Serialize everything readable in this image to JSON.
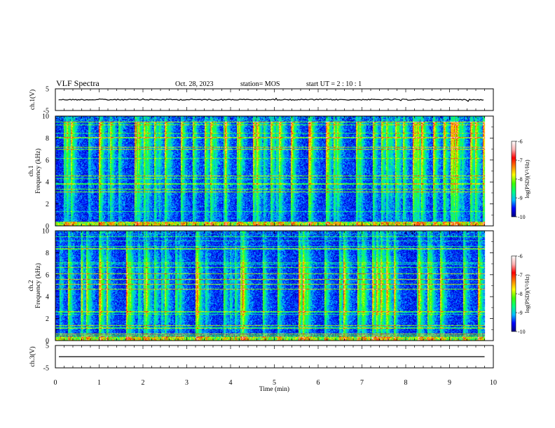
{
  "header": {
    "title": "VLF Spectra",
    "date": "Oct. 28, 2023",
    "station": "station= MOS",
    "start": "start  UT =   2 : 10 : 1"
  },
  "chart_data": [
    {
      "type": "line",
      "name": "ch1-voltage",
      "ylabel": "ch.1(V)",
      "ylim": [
        -5,
        5
      ],
      "ytick_labels": [
        "5",
        "-5"
      ],
      "baseline": 0,
      "xlim": [
        0,
        10
      ]
    },
    {
      "type": "heatmap",
      "name": "ch1-spectrogram",
      "ylabel": "ch.1\nFrequency (kHz)",
      "ylim": [
        0,
        10
      ],
      "ytick_labels": [
        "0",
        "2",
        "4",
        "6",
        "8",
        "10"
      ],
      "xlim": [
        0,
        10
      ],
      "data_end_min": 9.8,
      "colorbar": {
        "label": "log(PSD)(V²/Hz)",
        "range": [
          -10,
          -6
        ],
        "tick_labels": [
          "-6",
          "-7",
          "-8",
          "-9",
          "-10"
        ],
        "colors": [
          "#000080",
          "#0000ff",
          "#00bfff",
          "#00ff80",
          "#40ff00",
          "#ffff00",
          "#ff8000",
          "#ff0000",
          "#ffb0b0",
          "#ffffff"
        ]
      }
    },
    {
      "type": "heatmap",
      "name": "ch2-spectrogram",
      "ylabel": "ch.2\nFrequency (kHz)",
      "ylim": [
        0,
        10
      ],
      "ytick_labels": [
        "0",
        "2",
        "4",
        "6",
        "8",
        "10"
      ],
      "xlim": [
        0,
        10
      ],
      "data_end_min": 9.8,
      "colorbar": {
        "label": "log(PSD)(V²/Hz)",
        "range": [
          -10,
          -6
        ],
        "tick_labels": [
          "-6",
          "-7",
          "-8",
          "-9",
          "-10"
        ],
        "colors": [
          "#000080",
          "#0000ff",
          "#00bfff",
          "#00ff80",
          "#40ff00",
          "#ffff00",
          "#ff8000",
          "#ff0000",
          "#ffb0b0",
          "#ffffff"
        ]
      }
    },
    {
      "type": "line",
      "name": "ch3-voltage",
      "ylabel": "ch.3(V)",
      "ylim": [
        -5,
        5
      ],
      "ytick_labels": [
        "5",
        "-5"
      ],
      "baseline": 0,
      "xlim": [
        0,
        10
      ]
    }
  ],
  "xaxis": {
    "label": "Time  (min)",
    "tick_labels": [
      "0",
      "1",
      "2",
      "3",
      "4",
      "5",
      "6",
      "7",
      "8",
      "9",
      "10"
    ]
  }
}
